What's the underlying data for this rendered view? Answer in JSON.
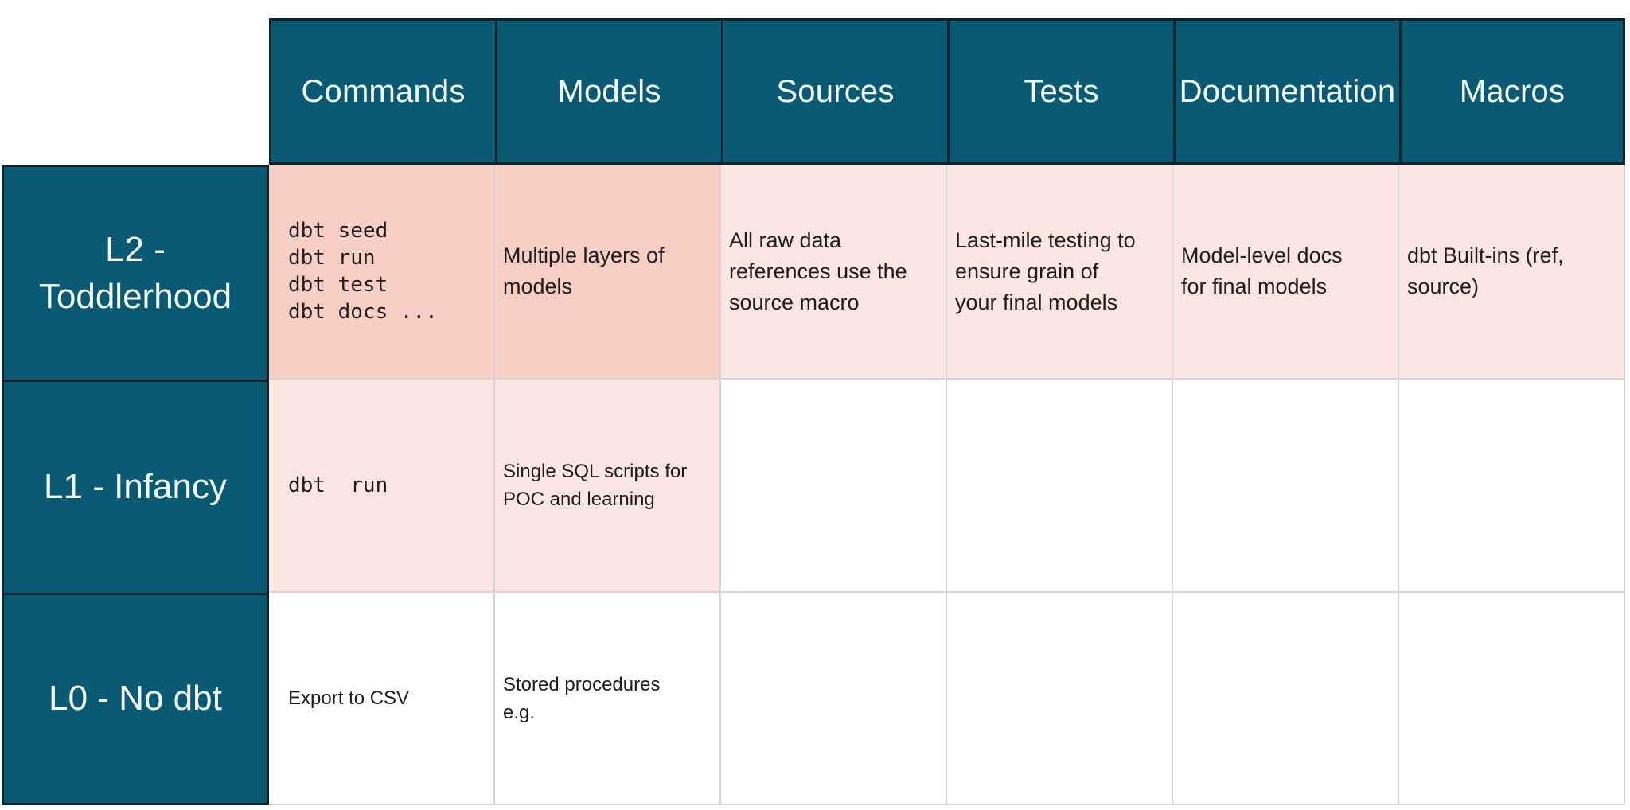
{
  "colors": {
    "teal": "#095a72",
    "dark_border": "#0e242c",
    "salmon": "#f8cfc4",
    "pink": "#fce6e2",
    "grid_line": "#d5d5d5",
    "body_text": "#1d1d1d",
    "header_text": "#f4f9fa",
    "background": "#ffffff"
  },
  "table": {
    "column_headers": [
      "Commands",
      "Models",
      "Sources",
      "Tests",
      "Documentation",
      "Macros"
    ],
    "rows": [
      {
        "label": "L2 -\nToddlerhood",
        "cells": {
          "commands": "dbt seed\ndbt run\ndbt test\ndbt docs ...",
          "models": "Multiple layers of\nmodels",
          "sources": "All raw data\nreferences use the\nsource macro",
          "tests": "Last-mile testing to\nensure grain of\nyour final models",
          "documentation": "Model-level docs\nfor final models",
          "macros": "dbt Built-ins (ref,\nsource)"
        }
      },
      {
        "label": "L1 - Infancy",
        "cells": {
          "commands": "dbt  run",
          "models": "Single SQL scripts for\nPOC and learning",
          "sources": "",
          "tests": "",
          "documentation": "",
          "macros": ""
        }
      },
      {
        "label": "L0 - No dbt",
        "cells": {
          "commands": "Export to CSV",
          "models": "Stored procedures\ne.g.",
          "sources": "",
          "tests": "",
          "documentation": "",
          "macros": ""
        }
      }
    ]
  }
}
